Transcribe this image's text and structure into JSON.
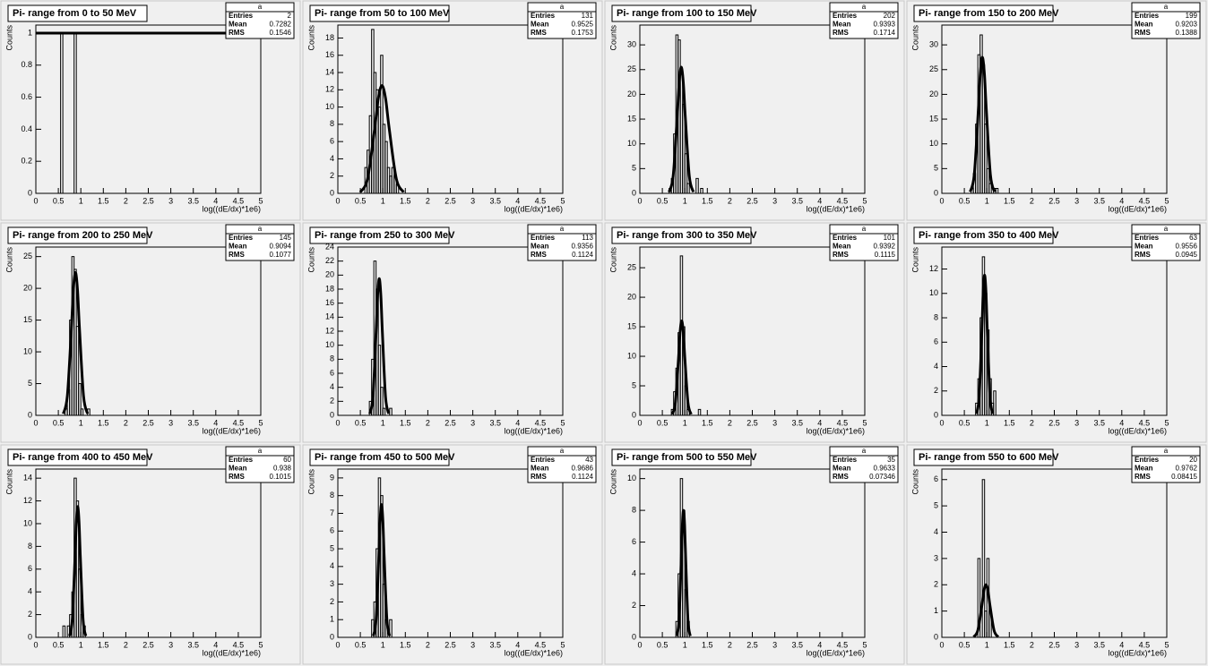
{
  "chart_data": [
    {
      "type": "histogram",
      "title": "Pi- range from 0 to 50 MeV",
      "stats_title": "a",
      "stats": [
        {
          "label": "Entries",
          "value": 2
        },
        {
          "label": "Mean",
          "value": 0.7282
        },
        {
          "label": "RMS",
          "value": 0.1546
        }
      ],
      "x_label": "log((dE/dx)*1e6)",
      "y_label": "Counts",
      "xlim": [
        0,
        5
      ],
      "xticks": [
        0,
        0.5,
        1,
        1.5,
        2,
        2.5,
        3,
        3.5,
        4,
        4.5,
        5
      ],
      "ylim": [
        0,
        1.05
      ],
      "yticks": [
        0,
        0.2,
        0.4,
        0.6,
        0.8,
        1
      ],
      "color": "#000000",
      "bins": [
        0.55,
        0.6,
        0.65,
        0.7,
        0.75,
        0.8,
        0.85,
        0.9
      ],
      "counts": [
        1,
        0,
        0,
        0,
        0,
        0,
        1
      ],
      "fit": {
        "x": [
          0,
          5
        ],
        "values": [
          1,
          1
        ]
      }
    },
    {
      "type": "histogram",
      "title": "Pi- range from 50 to 100 MeV",
      "stats_title": "a",
      "stats": [
        {
          "label": "Entries",
          "value": 131
        },
        {
          "label": "Mean",
          "value": 0.9525
        },
        {
          "label": "RMS",
          "value": 0.1753
        }
      ],
      "x_label": "log((dE/dx)*1e6)",
      "y_label": "Counts",
      "xlim": [
        0,
        5
      ],
      "xticks": [
        0,
        0.5,
        1,
        1.5,
        2,
        2.5,
        3,
        3.5,
        4,
        4.5,
        5
      ],
      "ylim": [
        0,
        19.5
      ],
      "yticks": [
        0,
        2,
        4,
        6,
        8,
        10,
        12,
        14,
        16,
        18
      ],
      "color": "#000000",
      "bins": [
        0.6,
        0.65,
        0.7,
        0.75,
        0.8,
        0.85,
        0.9,
        0.95,
        1,
        1.05,
        1.1,
        1.15,
        1.2,
        1.25,
        1.3,
        1.35,
        1.4,
        1.45,
        1.5
      ],
      "counts": [
        3,
        5,
        9,
        19,
        14,
        12,
        10,
        16,
        8,
        6,
        3,
        2,
        3,
        2,
        1,
        0,
        0,
        0
      ],
      "fit": {
        "x": [
          0.5,
          0.66,
          0.82,
          0.9,
          0.98,
          1.06,
          1.14,
          1.3,
          1.46
        ],
        "values": [
          0.14,
          1.69,
          7.58,
          11.03,
          12.5,
          11.03,
          7.58,
          1.69,
          0.14
        ]
      }
    },
    {
      "type": "histogram",
      "title": "Pi- range from 100 to 150 MeV",
      "stats_title": "a",
      "stats": [
        {
          "label": "Entries",
          "value": 202
        },
        {
          "label": "Mean",
          "value": 0.9393
        },
        {
          "label": "RMS",
          "value": 0.1714
        }
      ],
      "x_label": "log((dE/dx)*1e6)",
      "y_label": "Counts",
      "xlim": [
        0,
        5
      ],
      "xticks": [
        0,
        0.5,
        1,
        1.5,
        2,
        2.5,
        3,
        3.5,
        4,
        4.5,
        5
      ],
      "ylim": [
        0,
        34
      ],
      "yticks": [
        0,
        5,
        10,
        15,
        20,
        25,
        30
      ],
      "color": "#000000",
      "bins": [
        0.6,
        0.65,
        0.7,
        0.75,
        0.8,
        0.85,
        0.9,
        0.95,
        1,
        1.05,
        1.1,
        1.15,
        1.2,
        1.25,
        1.3,
        1.35,
        1.4,
        1.45,
        1.5
      ],
      "counts": [
        0,
        1,
        3,
        12,
        32,
        31,
        25,
        18,
        8,
        2,
        0,
        0,
        0,
        3,
        0,
        1,
        0,
        0
      ],
      "fit": {
        "x": [
          0.65,
          0.74,
          0.83,
          0.875,
          0.92,
          0.965,
          1.01,
          1.1,
          1.19
        ],
        "values": [
          0.28,
          3.45,
          15.47,
          22.5,
          25.5,
          22.5,
          15.47,
          3.45,
          0.28
        ]
      }
    },
    {
      "type": "histogram",
      "title": "Pi- range from 150 to 200 MeV",
      "stats_title": "a",
      "stats": [
        {
          "label": "Entries",
          "value": 199
        },
        {
          "label": "Mean",
          "value": 0.9203
        },
        {
          "label": "RMS",
          "value": 0.1388
        }
      ],
      "x_label": "log((dE/dx)*1e6)",
      "y_label": "Counts",
      "xlim": [
        0,
        5
      ],
      "xticks": [
        0,
        0.5,
        1,
        1.5,
        2,
        2.5,
        3,
        3.5,
        4,
        4.5,
        5
      ],
      "ylim": [
        0,
        34
      ],
      "yticks": [
        0,
        5,
        10,
        15,
        20,
        25,
        30
      ],
      "color": "#000000",
      "bins": [
        0.6,
        0.65,
        0.7,
        0.75,
        0.8,
        0.85,
        0.9,
        0.95,
        1,
        1.05,
        1.1,
        1.15,
        1.2,
        1.25,
        1.3,
        1.35,
        1.4,
        1.45,
        1.5
      ],
      "counts": [
        0,
        1,
        4,
        14,
        28,
        32,
        26,
        14,
        5,
        2,
        0,
        1,
        1,
        0,
        0,
        0,
        0,
        0
      ],
      "fit": {
        "x": [
          0.63,
          0.72,
          0.81,
          0.855,
          0.9,
          0.945,
          0.99,
          1.08,
          1.17
        ],
        "values": [
          0.31,
          3.72,
          16.68,
          24.27,
          27.5,
          24.27,
          16.68,
          3.72,
          0.31
        ]
      }
    },
    {
      "type": "histogram",
      "title": "Pi- range from 200 to 250 MeV",
      "stats_title": "a",
      "stats": [
        {
          "label": "Entries",
          "value": 145
        },
        {
          "label": "Mean",
          "value": 0.9094
        },
        {
          "label": "RMS",
          "value": 0.1077
        }
      ],
      "x_label": "log((dE/dx)*1e6)",
      "y_label": "Counts",
      "xlim": [
        0,
        5
      ],
      "xticks": [
        0,
        0.5,
        1,
        1.5,
        2,
        2.5,
        3,
        3.5,
        4,
        4.5,
        5
      ],
      "ylim": [
        0,
        26.5
      ],
      "yticks": [
        0,
        5,
        10,
        15,
        20,
        25
      ],
      "color": "#000000",
      "bins": [
        0.6,
        0.65,
        0.7,
        0.75,
        0.8,
        0.85,
        0.9,
        0.95,
        1,
        1.05,
        1.1,
        1.15,
        1.2,
        1.25,
        1.3,
        1.35,
        1.4,
        1.45,
        1.5
      ],
      "counts": [
        0,
        1,
        4,
        15,
        25,
        23,
        14,
        5,
        1,
        0,
        0,
        1,
        0,
        0,
        0,
        0,
        0,
        0
      ],
      "fit": {
        "x": [
          0.61,
          0.7,
          0.79,
          0.835,
          0.88,
          0.925,
          0.97,
          1.06,
          1.15
        ],
        "values": [
          0.25,
          3.04,
          13.65,
          19.86,
          22.5,
          19.86,
          13.65,
          3.04,
          0.25
        ]
      }
    },
    {
      "type": "histogram",
      "title": "Pi- range from 250 to 300 MeV",
      "stats_title": "a",
      "stats": [
        {
          "label": "Entries",
          "value": 113
        },
        {
          "label": "Mean",
          "value": 0.9356
        },
        {
          "label": "RMS",
          "value": 0.1124
        }
      ],
      "x_label": "log((dE/dx)*1e6)",
      "y_label": "Counts",
      "xlim": [
        0,
        5
      ],
      "xticks": [
        0,
        0.5,
        1,
        1.5,
        2,
        2.5,
        3,
        3.5,
        4,
        4.5,
        5
      ],
      "ylim": [
        0,
        24
      ],
      "yticks": [
        0,
        2,
        4,
        6,
        8,
        10,
        12,
        14,
        16,
        18,
        20,
        22,
        24
      ],
      "color": "#000000",
      "bins": [
        0.6,
        0.65,
        0.7,
        0.75,
        0.8,
        0.85,
        0.9,
        0.95,
        1,
        1.05,
        1.1,
        1.15,
        1.2,
        1.25,
        1.3,
        1.35,
        1.4,
        1.45,
        1.5
      ],
      "counts": [
        0,
        0,
        2,
        8,
        22,
        18,
        10,
        4,
        1,
        0,
        0,
        1,
        0,
        0,
        0,
        0,
        0,
        0
      ],
      "fit": {
        "x": [
          0.71,
          0.78,
          0.85,
          0.885,
          0.92,
          0.955,
          0.99,
          1.06,
          1.13
        ],
        "values": [
          0.22,
          2.64,
          11.83,
          17.21,
          19.5,
          17.21,
          11.83,
          2.64,
          0.22
        ]
      }
    },
    {
      "type": "histogram",
      "title": "Pi- range from 300 to 350 MeV",
      "stats_title": "a",
      "stats": [
        {
          "label": "Entries",
          "value": 101
        },
        {
          "label": "Mean",
          "value": 0.9392
        },
        {
          "label": "RMS",
          "value": 0.1115
        }
      ],
      "x_label": "log((dE/dx)*1e6)",
      "y_label": "Counts",
      "xlim": [
        0,
        5
      ],
      "xticks": [
        0,
        0.5,
        1,
        1.5,
        2,
        2.5,
        3,
        3.5,
        4,
        4.5,
        5
      ],
      "ylim": [
        0,
        28.5
      ],
      "yticks": [
        0,
        5,
        10,
        15,
        20,
        25
      ],
      "color": "#000000",
      "bins": [
        0.6,
        0.65,
        0.7,
        0.75,
        0.8,
        0.85,
        0.9,
        0.95,
        1,
        1.05,
        1.1,
        1.15,
        1.2,
        1.25,
        1.3,
        1.35,
        1.4,
        1.45,
        1.5
      ],
      "counts": [
        0,
        0,
        1,
        4,
        8,
        14,
        27,
        15,
        5,
        1,
        0,
        0,
        0,
        0,
        1,
        0,
        0,
        0
      ],
      "fit": {
        "x": [
          0.72,
          0.79,
          0.86,
          0.895,
          0.93,
          0.965,
          1,
          1.07,
          1.14
        ],
        "values": [
          0.18,
          2.16,
          9.7,
          14.12,
          16,
          14.12,
          9.7,
          2.16,
          0.18
        ]
      }
    },
    {
      "type": "histogram",
      "title": "Pi- range from 350 to 400 MeV",
      "stats_title": "a",
      "stats": [
        {
          "label": "Entries",
          "value": 63
        },
        {
          "label": "Mean",
          "value": 0.9556
        },
        {
          "label": "RMS",
          "value": 0.0945
        }
      ],
      "x_label": "log((dE/dx)*1e6)",
      "y_label": "Counts",
      "xlim": [
        0,
        5
      ],
      "xticks": [
        0,
        0.5,
        1,
        1.5,
        2,
        2.5,
        3,
        3.5,
        4,
        4.5,
        5
      ],
      "ylim": [
        0,
        13.8
      ],
      "yticks": [
        0,
        2,
        4,
        6,
        8,
        10,
        12
      ],
      "color": "#000000",
      "bins": [
        0.6,
        0.65,
        0.7,
        0.75,
        0.8,
        0.85,
        0.9,
        0.95,
        1,
        1.05,
        1.1,
        1.15,
        1.2,
        1.25,
        1.3,
        1.35,
        1.4,
        1.45,
        1.5
      ],
      "counts": [
        0,
        0,
        0,
        1,
        3,
        8,
        13,
        10,
        7,
        3,
        1,
        2,
        0,
        0,
        0,
        0,
        0,
        0
      ],
      "fit": {
        "x": [
          0.77,
          0.83,
          0.89,
          0.92,
          0.95,
          0.98,
          1.01,
          1.07,
          1.13
        ],
        "values": [
          0.13,
          1.56,
          6.97,
          10.15,
          11.5,
          10.15,
          6.97,
          1.56,
          0.13
        ]
      }
    },
    {
      "type": "histogram",
      "title": "Pi- range from 400 to 450 MeV",
      "stats_title": "a",
      "stats": [
        {
          "label": "Entries",
          "value": 60
        },
        {
          "label": "Mean",
          "value": 0.938
        },
        {
          "label": "RMS",
          "value": 0.1015
        }
      ],
      "x_label": "log((dE/dx)*1e6)",
      "y_label": "Counts",
      "xlim": [
        0,
        5
      ],
      "xticks": [
        0,
        0.5,
        1,
        1.5,
        2,
        2.5,
        3,
        3.5,
        4,
        4.5,
        5
      ],
      "ylim": [
        0,
        14.8
      ],
      "yticks": [
        0,
        2,
        4,
        6,
        8,
        10,
        12,
        14
      ],
      "color": "#000000",
      "bins": [
        0.6,
        0.65,
        0.7,
        0.75,
        0.8,
        0.85,
        0.9,
        0.95,
        1,
        1.05,
        1.1,
        1.15,
        1.2,
        1.25,
        1.3,
        1.35,
        1.4,
        1.45,
        1.5
      ],
      "counts": [
        1,
        0,
        1,
        2,
        4,
        14,
        12,
        6,
        2,
        1,
        0,
        0,
        0,
        0,
        0,
        0,
        0,
        0
      ],
      "fit": {
        "x": [
          0.75,
          0.81,
          0.87,
          0.9,
          0.93,
          0.96,
          0.99,
          1.05,
          1.11
        ],
        "values": [
          0.13,
          1.56,
          6.97,
          10.15,
          11.5,
          10.15,
          6.97,
          1.56,
          0.13
        ]
      }
    },
    {
      "type": "histogram",
      "title": "Pi- range from 450 to 500 MeV",
      "stats_title": "a",
      "stats": [
        {
          "label": "Entries",
          "value": 43
        },
        {
          "label": "Mean",
          "value": 0.9686
        },
        {
          "label": "RMS",
          "value": 0.1124
        }
      ],
      "x_label": "log((dE/dx)*1e6)",
      "y_label": "Counts",
      "xlim": [
        0,
        5
      ],
      "xticks": [
        0,
        0.5,
        1,
        1.5,
        2,
        2.5,
        3,
        3.5,
        4,
        4.5,
        5
      ],
      "ylim": [
        0,
        9.5
      ],
      "yticks": [
        0,
        1,
        2,
        3,
        4,
        5,
        6,
        7,
        8,
        9
      ],
      "color": "#000000",
      "bins": [
        0.6,
        0.65,
        0.7,
        0.75,
        0.8,
        0.85,
        0.9,
        0.95,
        1,
        1.05,
        1.1,
        1.15,
        1.2,
        1.25,
        1.3,
        1.35,
        1.4,
        1.45,
        1.5
      ],
      "counts": [
        0,
        0,
        0,
        1,
        2,
        5,
        9,
        8,
        3,
        1,
        0,
        1,
        0,
        0,
        0,
        0,
        0,
        0
      ],
      "fit": {
        "x": [
          0.79,
          0.85,
          0.91,
          0.94,
          0.97,
          1,
          1.03,
          1.09,
          1.15
        ],
        "values": [
          0.08,
          1.01,
          4.55,
          6.62,
          7.5,
          6.62,
          4.55,
          1.01,
          0.08
        ]
      }
    },
    {
      "type": "histogram",
      "title": "Pi- range from 500 to 550 MeV",
      "stats_title": "a",
      "stats": [
        {
          "label": "Entries",
          "value": 35
        },
        {
          "label": "Mean",
          "value": 0.9633
        },
        {
          "label": "RMS",
          "value": 0.07346
        }
      ],
      "x_label": "log((dE/dx)*1e6)",
      "y_label": "Counts",
      "xlim": [
        0,
        5
      ],
      "xticks": [
        0,
        0.5,
        1,
        1.5,
        2,
        2.5,
        3,
        3.5,
        4,
        4.5,
        5
      ],
      "ylim": [
        0,
        10.6
      ],
      "yticks": [
        0,
        2,
        4,
        6,
        8,
        10
      ],
      "color": "#000000",
      "bins": [
        0.6,
        0.65,
        0.7,
        0.75,
        0.8,
        0.85,
        0.9,
        0.95,
        1,
        1.05,
        1.1,
        1.15,
        1.2,
        1.25,
        1.3,
        1.35,
        1.4,
        1.45,
        1.5
      ],
      "counts": [
        0,
        0,
        0,
        0,
        1,
        4,
        10,
        8,
        3,
        1,
        0,
        0,
        0,
        0,
        0,
        0,
        0,
        0
      ],
      "fit": {
        "x": [
          0.82,
          0.87,
          0.92,
          0.945,
          0.97,
          0.995,
          1.02,
          1.07,
          1.12
        ],
        "values": [
          0.09,
          1.08,
          4.85,
          7.06,
          8,
          7.06,
          4.85,
          1.08,
          0.09
        ]
      }
    },
    {
      "type": "histogram",
      "title": "Pi- range from 550 to 600 MeV",
      "stats_title": "a",
      "stats": [
        {
          "label": "Entries",
          "value": 20
        },
        {
          "label": "Mean",
          "value": 0.9762
        },
        {
          "label": "RMS",
          "value": 0.08415
        }
      ],
      "x_label": "log((dE/dx)*1e6)",
      "y_label": "Counts",
      "xlim": [
        0,
        5
      ],
      "xticks": [
        0,
        0.5,
        1,
        1.5,
        2,
        2.5,
        3,
        3.5,
        4,
        4.5,
        5
      ],
      "ylim": [
        0,
        6.4
      ],
      "yticks": [
        0,
        1,
        2,
        3,
        4,
        5,
        6
      ],
      "color": "#000000",
      "bins": [
        0.6,
        0.65,
        0.7,
        0.75,
        0.8,
        0.85,
        0.9,
        0.95,
        1,
        1.05,
        1.1,
        1.15,
        1.2,
        1.25,
        1.3,
        1.35,
        1.4,
        1.45,
        1.5
      ],
      "counts": [
        0,
        0,
        0,
        0,
        3,
        0,
        6,
        1,
        3,
        1,
        0,
        0,
        0,
        0,
        0,
        0,
        0,
        0
      ],
      "fit": {
        "x": [
          0.71,
          0.8,
          0.89,
          0.935,
          0.98,
          1.025,
          1.07,
          1.16,
          1.25
        ],
        "values": [
          0.02,
          0.27,
          1.21,
          1.77,
          2,
          1.77,
          1.21,
          0.27,
          0.02
        ]
      }
    }
  ]
}
